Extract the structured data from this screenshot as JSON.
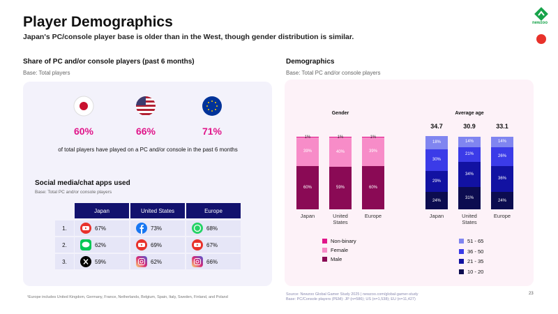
{
  "header": {
    "title": "Player Demographics",
    "subtitle": "Japan's PC/console player base is older than in the West, though gender distribution is similar.",
    "logo": "newzoo"
  },
  "share": {
    "title": "Share of PC and/or console players (past 6 months)",
    "base": "Base: Total players",
    "values": [
      "60%",
      "66%",
      "71%"
    ],
    "caption": "of total players have played on a PC and/or console in the past 6 months"
  },
  "social": {
    "title": "Social media/chat apps used",
    "base": "Base: Total PC and/or console players",
    "columns": [
      "Japan",
      "United States",
      "Europe"
    ],
    "rows": [
      {
        "rank": "1.",
        "cells": [
          "67%",
          "73%",
          "68%"
        ]
      },
      {
        "rank": "2.",
        "cells": [
          "62%",
          "69%",
          "67%"
        ]
      },
      {
        "rank": "3.",
        "cells": [
          "59%",
          "62%",
          "66%"
        ]
      }
    ]
  },
  "footnote": "¹Europe includes United Kingdom, Germany, France, Netherlands, Belgium, Spain, Italy, Sweden, Finland, and Poland",
  "demographics": {
    "title": "Demographics",
    "base": "Base: Total PC and/or console players"
  },
  "chart_data": [
    {
      "type": "bar",
      "stacked": true,
      "title": "Gender",
      "categories": [
        "Japan",
        "United States",
        "Europe"
      ],
      "ylim": [
        0,
        100
      ],
      "series": [
        {
          "name": "Male",
          "color": "#8a0a55",
          "values": [
            60,
            59,
            60
          ],
          "value_labels": [
            "60%",
            "59%",
            "60%"
          ]
        },
        {
          "name": "Female",
          "color": "#f78cc8",
          "values": [
            39,
            40,
            39
          ],
          "value_labels": [
            "39%",
            "40%",
            "39%"
          ]
        },
        {
          "name": "Non-binary",
          "color": "#e0168a",
          "values": [
            1,
            1,
            1
          ],
          "value_labels": [
            "1%",
            "1%",
            "1%"
          ]
        }
      ]
    },
    {
      "type": "bar",
      "stacked": true,
      "title": "Average age",
      "categories": [
        "Japan",
        "United States",
        "Europe"
      ],
      "ylim": [
        0,
        100
      ],
      "average_age": [
        34.7,
        30.9,
        33.1
      ],
      "series": [
        {
          "name": "10 - 20",
          "color": "#0c0c50",
          "values": [
            24,
            31,
            24
          ],
          "value_labels": [
            "24%",
            "31%",
            "24%"
          ]
        },
        {
          "name": "21 - 35",
          "color": "#1212a2",
          "values": [
            29,
            34,
            36
          ],
          "value_labels": [
            "29%",
            "34%",
            "36%"
          ]
        },
        {
          "name": "36 - 50",
          "color": "#3b3be8",
          "values": [
            30,
            21,
            26
          ],
          "value_labels": [
            "30%",
            "21%",
            "26%"
          ]
        },
        {
          "name": "51 - 65",
          "color": "#8085f0",
          "values": [
            18,
            14,
            14
          ],
          "value_labels": [
            "18%",
            "14%",
            "14%"
          ]
        }
      ]
    }
  ],
  "source": [
    "Source: Newzoo Global Gamer Study 2025 | newzoo.com/global-gamer-study",
    "Base: PC/Console players (PEM): JP (n=586); US (n=1,538); EU (n=11,427)"
  ],
  "page": "23"
}
